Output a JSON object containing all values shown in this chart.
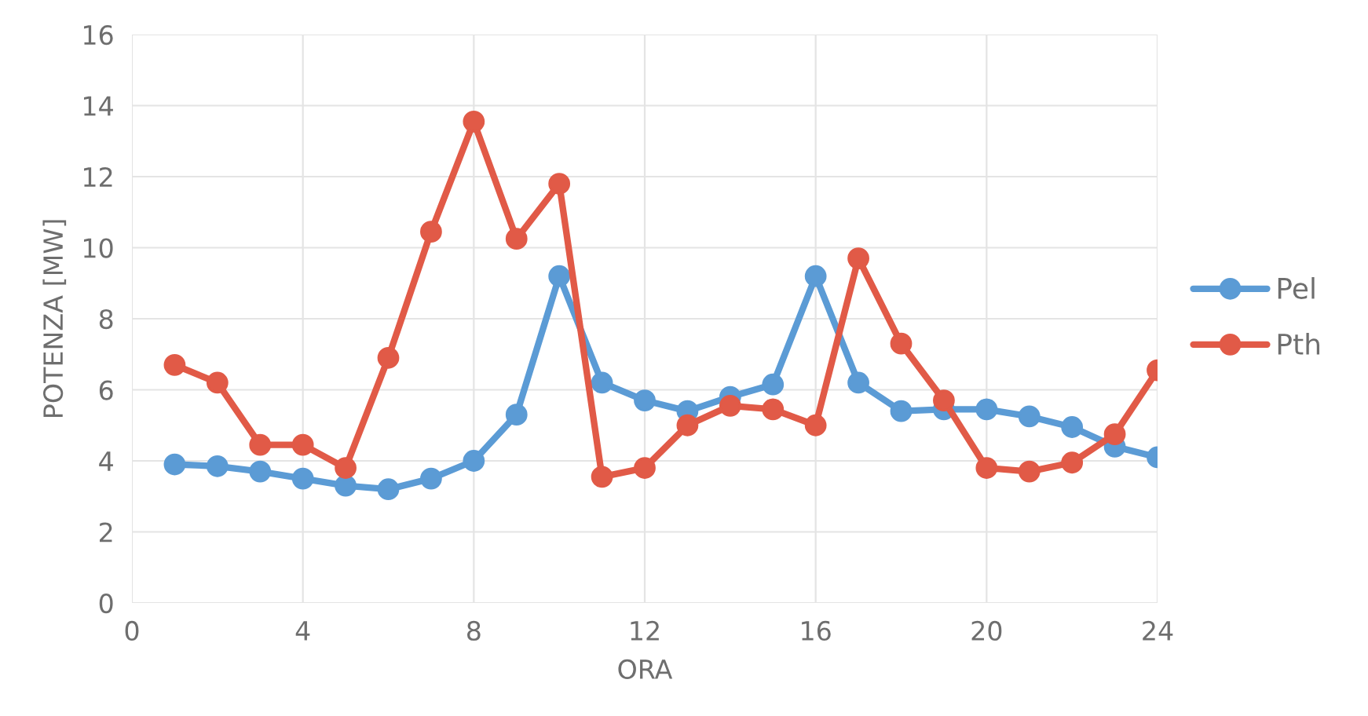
{
  "chart_data": {
    "type": "line",
    "xlabel": "ORA",
    "ylabel": "POTENZA [MW]",
    "x": [
      1,
      2,
      3,
      4,
      5,
      6,
      7,
      8,
      9,
      10,
      11,
      12,
      13,
      14,
      15,
      16,
      17,
      18,
      19,
      20,
      21,
      22,
      23,
      24
    ],
    "series": [
      {
        "name": "Pel",
        "color": "#5b9bd5",
        "values": [
          3.9,
          3.85,
          3.7,
          3.5,
          3.3,
          3.2,
          3.5,
          4.0,
          5.3,
          9.2,
          6.2,
          5.7,
          5.4,
          5.8,
          6.15,
          9.2,
          6.2,
          5.4,
          5.45,
          5.45,
          5.25,
          4.95,
          4.4,
          4.1
        ]
      },
      {
        "name": "Pth",
        "color": "#e15a47",
        "values": [
          6.7,
          6.2,
          4.45,
          4.45,
          3.8,
          6.9,
          10.45,
          13.55,
          10.25,
          11.8,
          3.55,
          3.8,
          5.0,
          5.55,
          5.45,
          5.0,
          9.7,
          7.3,
          5.7,
          3.8,
          3.7,
          3.95,
          4.75,
          6.55
        ]
      }
    ],
    "xlim": [
      0,
      24
    ],
    "xticks": [
      0,
      4,
      8,
      12,
      16,
      20,
      24
    ],
    "ylim": [
      0,
      16
    ],
    "yticks": [
      0,
      2,
      4,
      6,
      8,
      10,
      12,
      14,
      16
    ],
    "grid": true,
    "legend": "right",
    "marker": "circle",
    "line_style": "solid"
  }
}
